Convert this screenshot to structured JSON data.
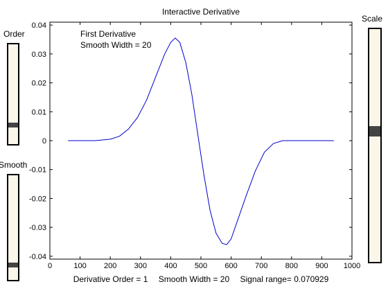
{
  "window": {
    "title": "Interactive Derivative"
  },
  "sliders": {
    "order": {
      "label": "Order",
      "level": 0.19
    },
    "smooth": {
      "label": "Smooth",
      "level": 0.14
    },
    "scale": {
      "label": "Scale",
      "level": 0.56
    }
  },
  "annotation": {
    "line1": "First Derivative",
    "line2": "Smooth Width = 20"
  },
  "status": {
    "order": "Derivative Order = 1",
    "smooth": "Smooth Width = 20",
    "range": "Signal range= 0.070929"
  },
  "colors": {
    "line": "#0000cc",
    "slider_bg": "#fbf6ea",
    "thumb": "#444444"
  },
  "chart_data": {
    "type": "line",
    "title": "Interactive Derivative",
    "xlim": [
      0,
      1000
    ],
    "ylim": [
      -0.041,
      0.041
    ],
    "xticks": [
      "0",
      "100",
      "200",
      "300",
      "400",
      "500",
      "600",
      "700",
      "800",
      "900",
      "1000"
    ],
    "yticks": [
      "0.04",
      "0.03",
      "0.02",
      "0.01",
      "0",
      "-0.01",
      "-0.02",
      "-0.03",
      "-0.04"
    ],
    "series": [
      {
        "x": [
          60,
          100,
          150,
          200,
          230,
          260,
          290,
          320,
          350,
          380,
          400,
          415,
          430,
          450,
          470,
          490,
          510,
          530,
          550,
          570,
          585,
          600,
          620,
          650,
          680,
          710,
          740,
          770,
          800,
          850,
          900,
          940
        ],
        "y": [
          0.0,
          0.0,
          0.0,
          0.0005,
          0.0015,
          0.004,
          0.008,
          0.014,
          0.022,
          0.03,
          0.034,
          0.0355,
          0.034,
          0.027,
          0.016,
          0.002,
          -0.012,
          -0.024,
          -0.032,
          -0.0355,
          -0.036,
          -0.034,
          -0.028,
          -0.019,
          -0.0105,
          -0.004,
          -0.001,
          0.0,
          0.0,
          0.0,
          0.0,
          0.0
        ]
      }
    ]
  }
}
